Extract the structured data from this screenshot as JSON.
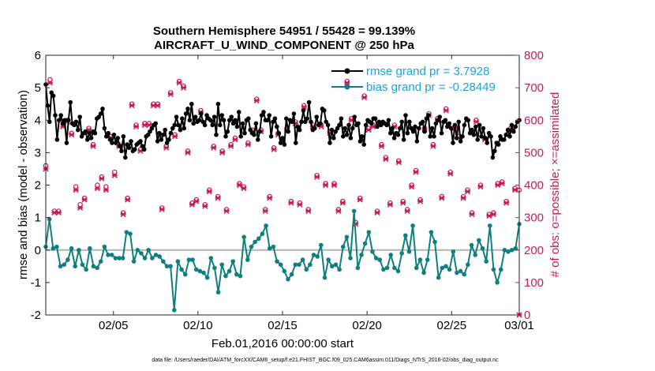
{
  "chart_data": {
    "type": "line",
    "title": [
      "Southern Hemisphere 54951 / 55428 = 99.139%",
      "AIRCRAFT_U_WIND_COMPONENT @ 250 hPa"
    ],
    "xlabel": "Feb.01,2016 00:00:00 start",
    "ylabel": "rmse and bias (model - observation)",
    "ylabel_right": "# of obs: o=possible; ×=assimilated",
    "footnote": "data file: /Users/raeder/DAI/ATM_forcXX/CAM6_setup/f.e21.FHIST_BGC.f09_025.CAM6assim.011/Diags_NTrS_2016-02/obs_diag_output.nc",
    "x_range": [
      1,
      29
    ],
    "ylim": [
      -2,
      6
    ],
    "ylim_right": [
      0,
      800
    ],
    "xticks": [
      {
        "value": 5,
        "label": "02/05"
      },
      {
        "value": 10,
        "label": "02/10"
      },
      {
        "value": 15,
        "label": "02/15"
      },
      {
        "value": 20,
        "label": "02/20"
      },
      {
        "value": 25,
        "label": "02/25"
      },
      {
        "value": 29,
        "label": "03/01"
      }
    ],
    "yticks": [
      -2,
      -1,
      0,
      1,
      2,
      3,
      4,
      5,
      6
    ],
    "yticks_right": [
      0,
      100,
      200,
      300,
      400,
      500,
      600,
      700,
      800
    ],
    "zero_line": 0,
    "legend": {
      "placement": "top-right",
      "entries": [
        "rmse grand pr = 3.7928",
        "bias grand pr = -0.28449"
      ]
    },
    "colors": {
      "rmse": "#000000",
      "bias": "#0f7f7f",
      "obs": "#c8195a",
      "zero_line": "#b4b4b4",
      "legend_text": "#1aa3e0"
    },
    "rmse": [
      5.1,
      4.45,
      3.95,
      4.85,
      4.75,
      4.15,
      3.4,
      4.0,
      4.15,
      3.9,
      4.0,
      3.3,
      4.0,
      4.55,
      3.9,
      3.85,
      3.95,
      3.7,
      4.1,
      3.5,
      3.6,
      3.65,
      3.4,
      3.6,
      3.45,
      3.65,
      3.6,
      4.05,
      4.1,
      4.2,
      4.35,
      3.75,
      3.5,
      3.6,
      3.4,
      3.3,
      3.55,
      3.3,
      3.45,
      3.2,
      3.05,
      3.5,
      2.85,
      3.25,
      3.15,
      3.35,
      3.05,
      3.1,
      3.25,
      3.3,
      3.35,
      3.2,
      3.1,
      3.5,
      3.55,
      3.65,
      3.75,
      3.85,
      3.9,
      3.35,
      3.6,
      3.4,
      3.55,
      3.7,
      3.3,
      3.4,
      3.6,
      3.75,
      3.85,
      4.1,
      3.85,
      3.7,
      4.05,
      3.75,
      4.2,
      4.35,
      4.0,
      4.5,
      3.9,
      4.1,
      3.95,
      4.0,
      4.2,
      3.95,
      3.85,
      4.15,
      4.05,
      4.0,
      3.85,
      4.1,
      3.55,
      4.5,
      3.85,
      4.15,
      4.0,
      3.5,
      3.65,
      4.0,
      4.1,
      3.9,
      4.0,
      3.8,
      4.25,
      3.5,
      3.9,
      3.6,
      4.0,
      4.05,
      3.7,
      3.6,
      3.55,
      3.9,
      3.4,
      3.65,
      4.15,
      4.25,
      4.0,
      4.0,
      4.15,
      3.5,
      3.95,
      4.05,
      3.8,
      3.6,
      3.3,
      3.45,
      3.25,
      4.05,
      3.65,
      4.0,
      3.95,
      4.2,
      3.3,
      3.8,
      3.7,
      3.95,
      4.3,
      3.95,
      4.05,
      4.55,
      3.95,
      3.7,
      3.75,
      4.1,
      3.85,
      3.9,
      4.35,
      4.3,
      3.95,
      3.85,
      3.3,
      3.7,
      3.45,
      3.65,
      3.75,
      3.85,
      4.05,
      3.5,
      3.75,
      3.55,
      3.85,
      3.45,
      3.75,
      4.1,
      3.85,
      3.9,
      3.35,
      3.5,
      3.25,
      3.85,
      4.0,
      3.95,
      3.9,
      4.05,
      4.05,
      3.8,
      3.95,
      3.85,
      3.95,
      3.9,
      3.85,
      4.0,
      3.6,
      3.75,
      3.45,
      3.6,
      3.55,
      3.75,
      3.95,
      3.4,
      4.15,
      3.6,
      3.95,
      3.75,
      3.65,
      3.8,
      3.35,
      3.75,
      3.9,
      3.95,
      3.65,
      4.05,
      4.15,
      3.5,
      3.75,
      3.5,
      3.9,
      4.0,
      4.1,
      3.6,
      3.95,
      4.0,
      3.8,
      3.9,
      3.75,
      3.3,
      3.85,
      3.45,
      3.95,
      3.35,
      3.5,
      3.85,
      4.05,
      4.0,
      3.6,
      3.7,
      3.55,
      3.8,
      3.4,
      3.85,
      3.5,
      3.75,
      3.45,
      3.3,
      3.6,
      3.5,
      2.85,
      3.05,
      3.3,
      3.25,
      3.5,
      3.4,
      3.4,
      3.55,
      3.7,
      3.5,
      3.85,
      3.65,
      3.8,
      3.95,
      4.0
    ],
    "bias": [
      0.1,
      0.95,
      0.05,
      0.1,
      -0.5,
      -0.45,
      -0.3,
      0.05,
      -0.5,
      0.0,
      -0.45,
      -0.6,
      0.05,
      -0.5,
      -0.55,
      -0.35,
      0.1,
      -0.15,
      -0.15,
      -0.25,
      -0.25,
      -0.25,
      0.55,
      0.5,
      -0.35,
      0.0,
      -0.1,
      -0.25,
      0.0,
      -0.25,
      -0.15,
      -0.2,
      -0.35,
      -0.5,
      -0.5,
      -1.85,
      -0.35,
      -0.6,
      -0.75,
      -0.3,
      -0.3,
      -0.6,
      -0.65,
      -0.7,
      -0.85,
      -0.25,
      -0.55,
      -1.3,
      -0.45,
      -0.8,
      -0.65,
      -0.35,
      -0.75,
      -0.8,
      0.4,
      -0.3,
      0.1,
      0.25,
      0.35,
      0.5,
      0.75,
      0.05,
      0.1,
      -0.35,
      -0.45,
      -0.65,
      -0.9,
      -0.75,
      -0.45,
      -0.45,
      -0.3,
      -0.6,
      -0.45,
      -0.15,
      -0.2,
      0.15,
      -0.85,
      -0.3,
      -0.5,
      -0.45,
      -0.6,
      0.1,
      0.4,
      -0.25,
      1.2,
      -0.55,
      -0.15,
      0.2,
      0.55,
      -0.05,
      -0.25,
      -0.3,
      -0.6,
      -0.55,
      -0.15,
      -0.55,
      -0.65,
      -0.1,
      0.45,
      -0.05,
      0.75,
      -0.55,
      -0.3,
      -0.7,
      -0.3,
      0.55,
      0.25,
      -0.85,
      -0.55,
      -0.5,
      -0.6,
      -0.05,
      -0.7,
      -0.65,
      -0.75,
      -0.45,
      0.15,
      -0.15,
      0.3,
      0.05,
      -0.35,
      0.75,
      -0.6,
      -1.0,
      -0.6,
      0.0,
      -0.05,
      0.0,
      0.05,
      0.8
    ],
    "obs_possible": [
      460,
      725,
      320,
      320,
      590,
      600,
      560,
      395,
      340,
      360,
      575,
      525,
      400,
      425,
      395,
      550,
      440,
      525,
      315,
      360,
      650,
      585,
      510,
      590,
      590,
      650,
      650,
      330,
      520,
      685,
      555,
      720,
      705,
      505,
      345,
      355,
      630,
      340,
      385,
      520,
      365,
      505,
      325,
      525,
      545,
      405,
      395,
      530,
      570,
      665,
      570,
      325,
      365,
      515,
      560,
      540,
      575,
      350,
      595,
      345,
      645,
      325,
      585,
      430,
      585,
      405,
      565,
      405,
      325,
      350,
      720,
      605,
      285,
      360,
      675,
      575,
      585,
      320,
      525,
      485,
      345,
      585,
      475,
      350,
      325,
      400,
      445,
      355,
      575,
      620,
      525,
      605,
      365,
      635,
      440,
      580,
      550,
      365,
      385,
      315,
      600,
      400,
      545,
      310,
      315,
      405,
      410,
      350,
      575,
      390,
      385
    ],
    "obs_assimilated": [
      450,
      715,
      315,
      315,
      580,
      595,
      555,
      385,
      330,
      355,
      570,
      520,
      390,
      420,
      385,
      545,
      430,
      520,
      310,
      355,
      645,
      580,
      505,
      585,
      585,
      645,
      645,
      325,
      515,
      680,
      550,
      715,
      700,
      500,
      340,
      350,
      625,
      335,
      380,
      515,
      360,
      500,
      320,
      520,
      540,
      400,
      390,
      525,
      565,
      660,
      565,
      320,
      360,
      510,
      555,
      535,
      570,
      345,
      590,
      340,
      640,
      320,
      580,
      425,
      580,
      400,
      560,
      400,
      320,
      345,
      715,
      600,
      280,
      355,
      670,
      570,
      580,
      315,
      520,
      480,
      340,
      580,
      470,
      345,
      320,
      395,
      440,
      350,
      570,
      615,
      520,
      600,
      360,
      630,
      435,
      575,
      545,
      360,
      380,
      310,
      595,
      395,
      540,
      305,
      310,
      400,
      405,
      345,
      570,
      385,
      0
    ]
  }
}
